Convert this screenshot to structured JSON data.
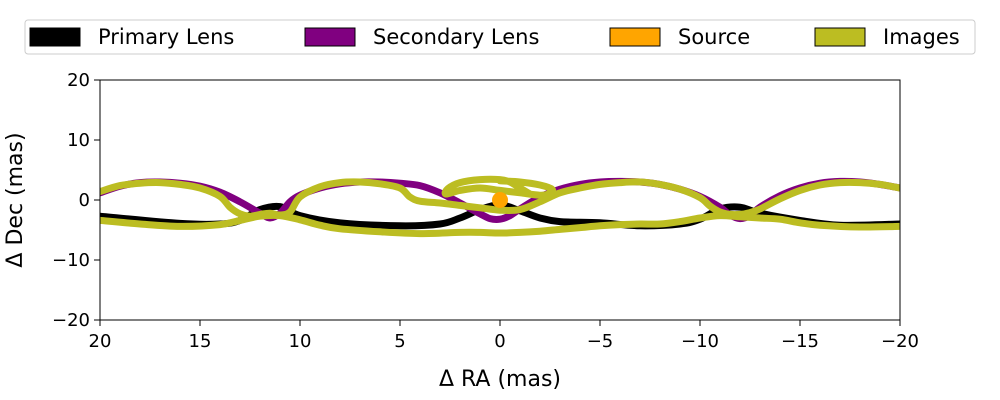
{
  "chart_data": {
    "type": "line",
    "title": "",
    "xlabel": "Δ RA (mas)",
    "ylabel": "Δ Dec (mas)",
    "xlim": [
      20,
      -20
    ],
    "ylim": [
      -20,
      20
    ],
    "x_ticks": [
      20,
      15,
      10,
      5,
      0,
      -5,
      -10,
      -15,
      -20
    ],
    "x_tick_labels": [
      "20",
      "15",
      "10",
      "5",
      "0",
      "−5",
      "−10",
      "−15",
      "−20"
    ],
    "y_ticks": [
      20,
      10,
      0,
      -10,
      -20
    ],
    "y_tick_labels": [
      "20",
      "10",
      "0",
      "−10",
      "−20"
    ],
    "grid": false,
    "legend_placement": "top-center",
    "series": [
      {
        "name": "Primary Lens",
        "color": "#000000",
        "x": [
          20,
          16,
          14,
          13,
          12,
          11,
          10,
          8,
          5,
          3,
          2,
          1,
          0,
          -1,
          -2,
          -3,
          -5,
          -7,
          -9,
          -10,
          -11,
          -12,
          -13,
          -15,
          -17,
          -20
        ],
        "y": [
          -2.7,
          -3.9,
          -4.0,
          -3.4,
          -1.6,
          -1.1,
          -2.6,
          -3.8,
          -4.3,
          -4.0,
          -3.0,
          -1.6,
          -0.8,
          -1.8,
          -3.0,
          -3.6,
          -3.8,
          -4.3,
          -4.0,
          -3.2,
          -1.5,
          -1.2,
          -2.2,
          -3.4,
          -4.2,
          -4.0
        ]
      },
      {
        "name": "Secondary Lens",
        "color": "#800080",
        "x": [
          20,
          19,
          18,
          17,
          16,
          15,
          14,
          13,
          12,
          11.5,
          11,
          10.5,
          10,
          9,
          8,
          7,
          6,
          5,
          4,
          3,
          2,
          1,
          0.5,
          0,
          -0.5,
          -1,
          -2,
          -3,
          -4,
          -5,
          -6,
          -7,
          -8,
          -9,
          -10,
          -11,
          -11.5,
          -12,
          -12.5,
          -13,
          -14,
          -15,
          -16,
          -17,
          -18,
          -19,
          -20
        ],
        "y": [
          1.2,
          2.3,
          2.9,
          3.0,
          2.8,
          2.3,
          1.3,
          -0.3,
          -2.2,
          -3.0,
          -2.2,
          -0.3,
          0.8,
          2.0,
          2.7,
          3.0,
          3.0,
          2.8,
          2.4,
          1.2,
          -0.5,
          -2.3,
          -3.1,
          -3.2,
          -2.6,
          -1.5,
          0.5,
          1.8,
          2.6,
          3.0,
          3.1,
          3.0,
          2.6,
          1.8,
          0.6,
          -1.2,
          -2.5,
          -3.1,
          -2.6,
          -1.2,
          0.7,
          2.0,
          2.8,
          3.1,
          3.0,
          2.6,
          2.0
        ]
      },
      {
        "name": "Images",
        "color": "#bcbd22",
        "x": [
          20,
          19,
          18,
          17,
          16,
          15,
          14,
          13.5,
          13,
          12.5,
          12,
          11.5,
          11,
          10.5,
          10,
          9,
          8,
          7,
          6,
          5,
          4.5,
          4,
          3,
          2,
          1,
          0,
          -1,
          -2,
          -3,
          -4,
          -5,
          -6,
          -7,
          -8,
          -9,
          -10,
          -10.5,
          -11,
          -11.5,
          -12,
          -12.5,
          -13,
          -14,
          -15,
          -16,
          -17,
          -18,
          -19,
          -20
        ],
        "y": [
          1.4,
          2.4,
          2.8,
          2.9,
          2.6,
          2.0,
          0.6,
          -1.2,
          -2.3,
          -2.7,
          -2.4,
          -2.2,
          -2.5,
          -2.0,
          0.5,
          2.2,
          2.9,
          3.0,
          2.7,
          2.0,
          0.5,
          -0.2,
          -0.5,
          -0.9,
          -1.3,
          -1.7,
          -1.6,
          -0.3,
          1.2,
          2.0,
          2.6,
          2.9,
          3.0,
          2.6,
          1.8,
          0.4,
          -1.0,
          -2.0,
          -2.4,
          -2.4,
          -2.1,
          -1.5,
          0.2,
          1.6,
          2.5,
          2.9,
          2.9,
          2.6,
          2.0
        ]
      },
      {
        "name": "Images",
        "color": "#bcbd22",
        "x": [
          20,
          18,
          16,
          14,
          13,
          12,
          11,
          10,
          9,
          8,
          6,
          4,
          2,
          1,
          0,
          -1,
          -2,
          -3,
          -4,
          -5,
          -6,
          -7,
          -8,
          -9,
          -10,
          -11,
          -12,
          -13,
          -14,
          -15,
          -16,
          -18,
          -20
        ],
        "y": [
          -3.4,
          -4.0,
          -4.4,
          -4.1,
          -3.4,
          -2.7,
          -2.6,
          -3.3,
          -4.2,
          -4.8,
          -5.3,
          -5.6,
          -5.4,
          -5.4,
          -5.5,
          -5.4,
          -5.2,
          -4.9,
          -4.6,
          -4.3,
          -4.1,
          -4.0,
          -4.0,
          -3.6,
          -3.0,
          -2.6,
          -2.8,
          -3.0,
          -3.2,
          -3.8,
          -4.2,
          -4.5,
          -4.4
        ]
      },
      {
        "name": "Images",
        "color": "#bcbd22",
        "x": [
          0,
          -1,
          -2,
          -2.6,
          -2.5,
          -2,
          -1,
          0,
          1,
          2,
          2.7,
          2.6,
          2,
          1,
          0,
          -0.5,
          -1,
          -1.5
        ],
        "y": [
          3.2,
          3.0,
          2.5,
          1.8,
          1.1,
          0.8,
          1.2,
          1.6,
          2.0,
          1.6,
          1.0,
          1.9,
          2.9,
          3.4,
          3.4,
          3.0,
          2.0,
          1.0
        ]
      },
      {
        "name": "Source",
        "type": "scatter",
        "color": "#ffa500",
        "x": [
          0
        ],
        "y": [
          0
        ]
      }
    ],
    "legend": [
      {
        "label": "Primary Lens",
        "color": "#000000"
      },
      {
        "label": "Secondary Lens",
        "color": "#800080"
      },
      {
        "label": "Source",
        "color": "#ffa500"
      },
      {
        "label": "Images",
        "color": "#bcbd22"
      }
    ]
  }
}
